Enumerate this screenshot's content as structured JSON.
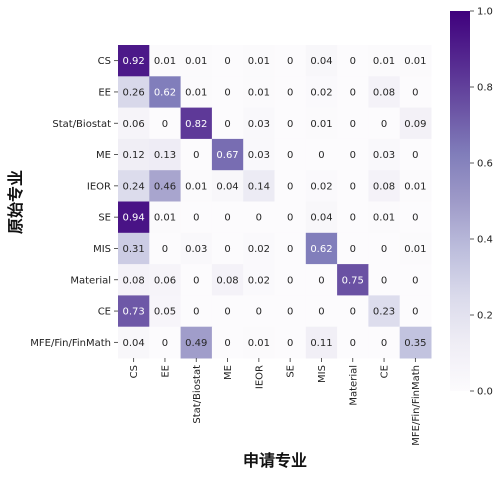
{
  "chart_data": {
    "type": "heatmap",
    "title": "",
    "xlabel": "申请专业",
    "ylabel": "原始专业",
    "x_categories": [
      "CS",
      "EE",
      "Stat/Biostat",
      "ME",
      "IEOR",
      "SE",
      "MIS",
      "Material",
      "CE",
      "MFE/Fin/FinMath"
    ],
    "y_categories": [
      "CS",
      "EE",
      "Stat/Biostat",
      "ME",
      "IEOR",
      "SE",
      "MIS",
      "Material",
      "CE",
      "MFE/Fin/FinMath"
    ],
    "values": [
      [
        0.92,
        0.01,
        0.01,
        0,
        0.01,
        0,
        0.04,
        0,
        0.01,
        0.01
      ],
      [
        0.26,
        0.62,
        0.01,
        0,
        0.01,
        0,
        0.02,
        0,
        0.08,
        0
      ],
      [
        0.06,
        0,
        0.82,
        0,
        0.03,
        0,
        0.01,
        0,
        0,
        0.09
      ],
      [
        0.12,
        0.13,
        0,
        0.67,
        0.03,
        0,
        0,
        0,
        0.03,
        0
      ],
      [
        0.24,
        0.46,
        0.01,
        0.04,
        0.14,
        0,
        0.02,
        0,
        0.08,
        0.01
      ],
      [
        0.94,
        0.01,
        0,
        0,
        0,
        0,
        0.04,
        0,
        0.01,
        0
      ],
      [
        0.31,
        0,
        0.03,
        0,
        0.02,
        0,
        0.62,
        0,
        0,
        0.01
      ],
      [
        0.08,
        0.06,
        0,
        0.08,
        0.02,
        0,
        0,
        0.75,
        0,
        0
      ],
      [
        0.73,
        0.05,
        0,
        0,
        0,
        0,
        0,
        0,
        0.23,
        0
      ],
      [
        0.04,
        0,
        0.49,
        0,
        0.01,
        0,
        0.11,
        0,
        0,
        0.35
      ]
    ],
    "colorbar": {
      "range": [
        0.0,
        1.0
      ],
      "ticks": [
        "0.0",
        "0.2",
        "0.4",
        "0.6",
        "0.8",
        "1.0"
      ],
      "colormap": "Purples",
      "color_low": "#fcfbfd",
      "color_high": "#3f007d"
    },
    "grid": false,
    "legend": "colorbar-right"
  }
}
